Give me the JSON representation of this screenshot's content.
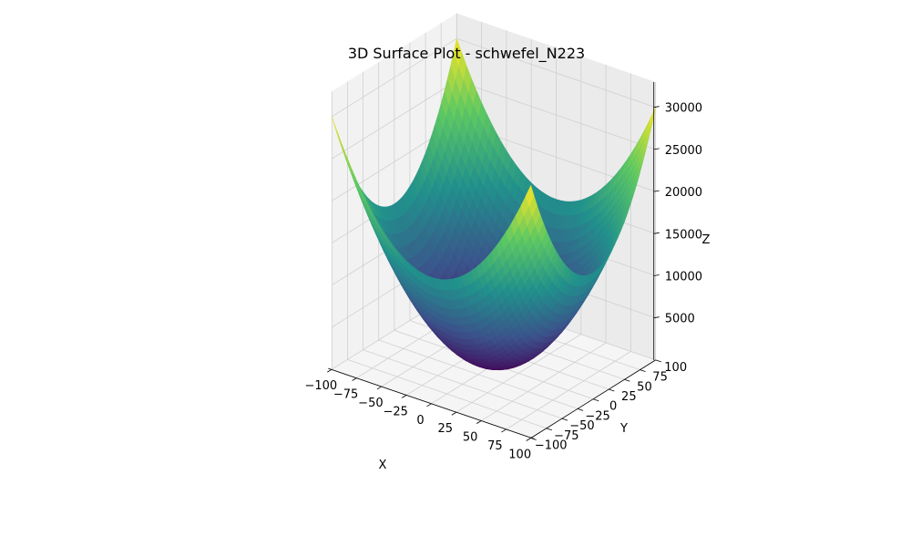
{
  "chart_data": {
    "type": "surface3d",
    "title": "3D Surface Plot - schwefel_N223",
    "xlabel": "X",
    "ylabel": "Y",
    "zlabel": "Z",
    "xlim": [
      -100,
      100
    ],
    "ylim": [
      -100,
      100
    ],
    "zlim": [
      0,
      30000
    ],
    "x_ticks": [
      -100,
      -75,
      -50,
      -25,
      0,
      25,
      50,
      75,
      100
    ],
    "y_ticks": [
      -100,
      -75,
      -50,
      -25,
      0,
      25,
      50,
      75,
      100
    ],
    "z_ticks": [
      5000,
      10000,
      15000,
      20000,
      25000,
      30000
    ],
    "x_tick_labels": [
      "−100",
      "−75",
      "−50",
      "−25",
      "0",
      "25",
      "50",
      "75",
      "100"
    ],
    "y_tick_labels": [
      "−100",
      "−75",
      "−50",
      "−25",
      "0",
      "25",
      "50",
      "75",
      "100"
    ],
    "z_tick_labels": [
      "5000",
      "10000",
      "15000",
      "20000",
      "25000",
      "30000"
    ],
    "function": "z = 1.5 * (x^2 + y^2)",
    "z_corner_max": 30000,
    "z_min": 0,
    "grid": true,
    "colormap": "viridis",
    "colormap_stops": [
      "#440154",
      "#3b528b",
      "#21918c",
      "#5ec962",
      "#fde725"
    ],
    "pane_color": "#f2f2f2",
    "grid_color": "#d0d0d0"
  }
}
